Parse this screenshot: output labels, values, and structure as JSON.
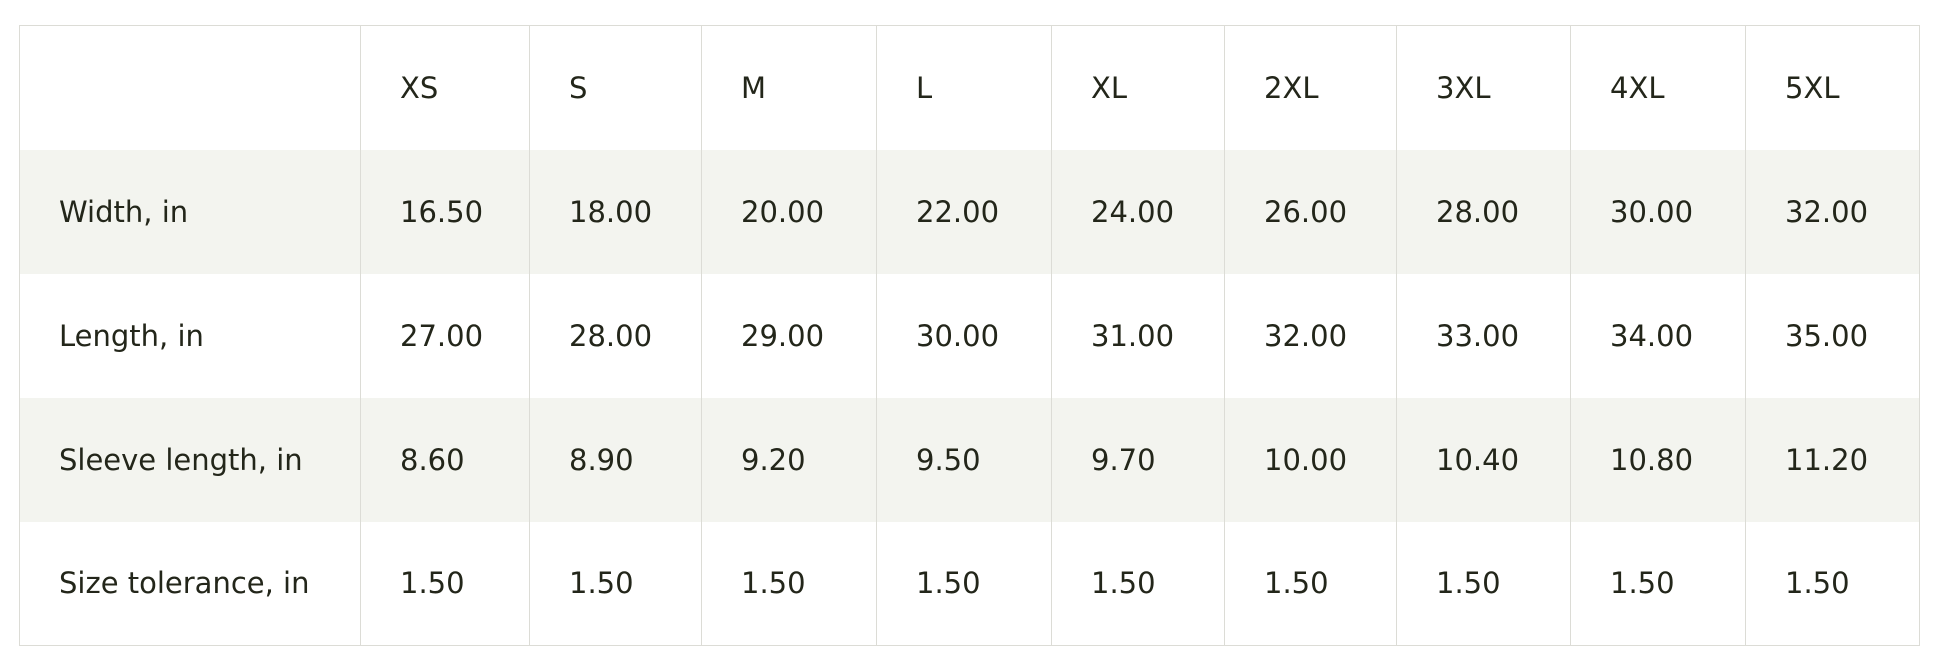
{
  "table": {
    "columns": [
      "XS",
      "S",
      "M",
      "L",
      "XL",
      "2XL",
      "3XL",
      "4XL",
      "5XL"
    ],
    "rows": [
      {
        "label": "Width, in",
        "cells": [
          "16.50",
          "18.00",
          "20.00",
          "22.00",
          "24.00",
          "26.00",
          "28.00",
          "30.00",
          "32.00"
        ]
      },
      {
        "label": "Length, in",
        "cells": [
          "27.00",
          "28.00",
          "29.00",
          "30.00",
          "31.00",
          "32.00",
          "33.00",
          "34.00",
          "35.00"
        ]
      },
      {
        "label": "Sleeve length, in",
        "cells": [
          "8.60",
          "8.90",
          "9.20",
          "9.50",
          "9.70",
          "10.00",
          "10.40",
          "10.80",
          "11.20"
        ]
      },
      {
        "label": "Size tolerance, in",
        "cells": [
          "1.50",
          "1.50",
          "1.50",
          "1.50",
          "1.50",
          "1.50",
          "1.50",
          "1.50",
          "1.50"
        ]
      }
    ]
  }
}
